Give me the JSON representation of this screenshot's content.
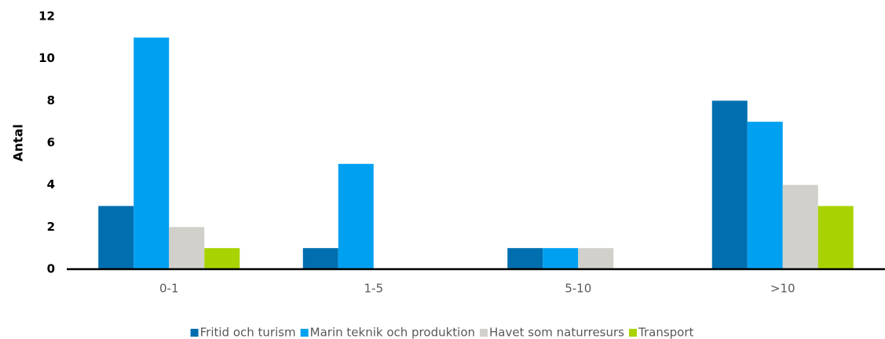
{
  "chart_data": {
    "type": "bar",
    "y_label": "Antal",
    "categories": [
      "0-1",
      "1-5",
      "5-10",
      ">10"
    ],
    "series": [
      {
        "name": "Fritid och turism",
        "color": "#006eaf",
        "values": [
          3,
          1,
          1,
          8
        ]
      },
      {
        "name": "Marin teknik och produktion",
        "color": "#00a0f0",
        "values": [
          11,
          5,
          1,
          7
        ]
      },
      {
        "name": "Havet som naturresurs",
        "color": "#d1d0cb",
        "values": [
          2,
          0,
          1,
          4
        ]
      },
      {
        "name": "Transport",
        "color": "#a9d300",
        "values": [
          1,
          0,
          0,
          3
        ]
      }
    ],
    "ylim": [
      0,
      12
    ],
    "yticks": [
      0,
      2,
      4,
      6,
      8,
      10,
      12
    ],
    "grid": false,
    "legend": "bottom"
  }
}
